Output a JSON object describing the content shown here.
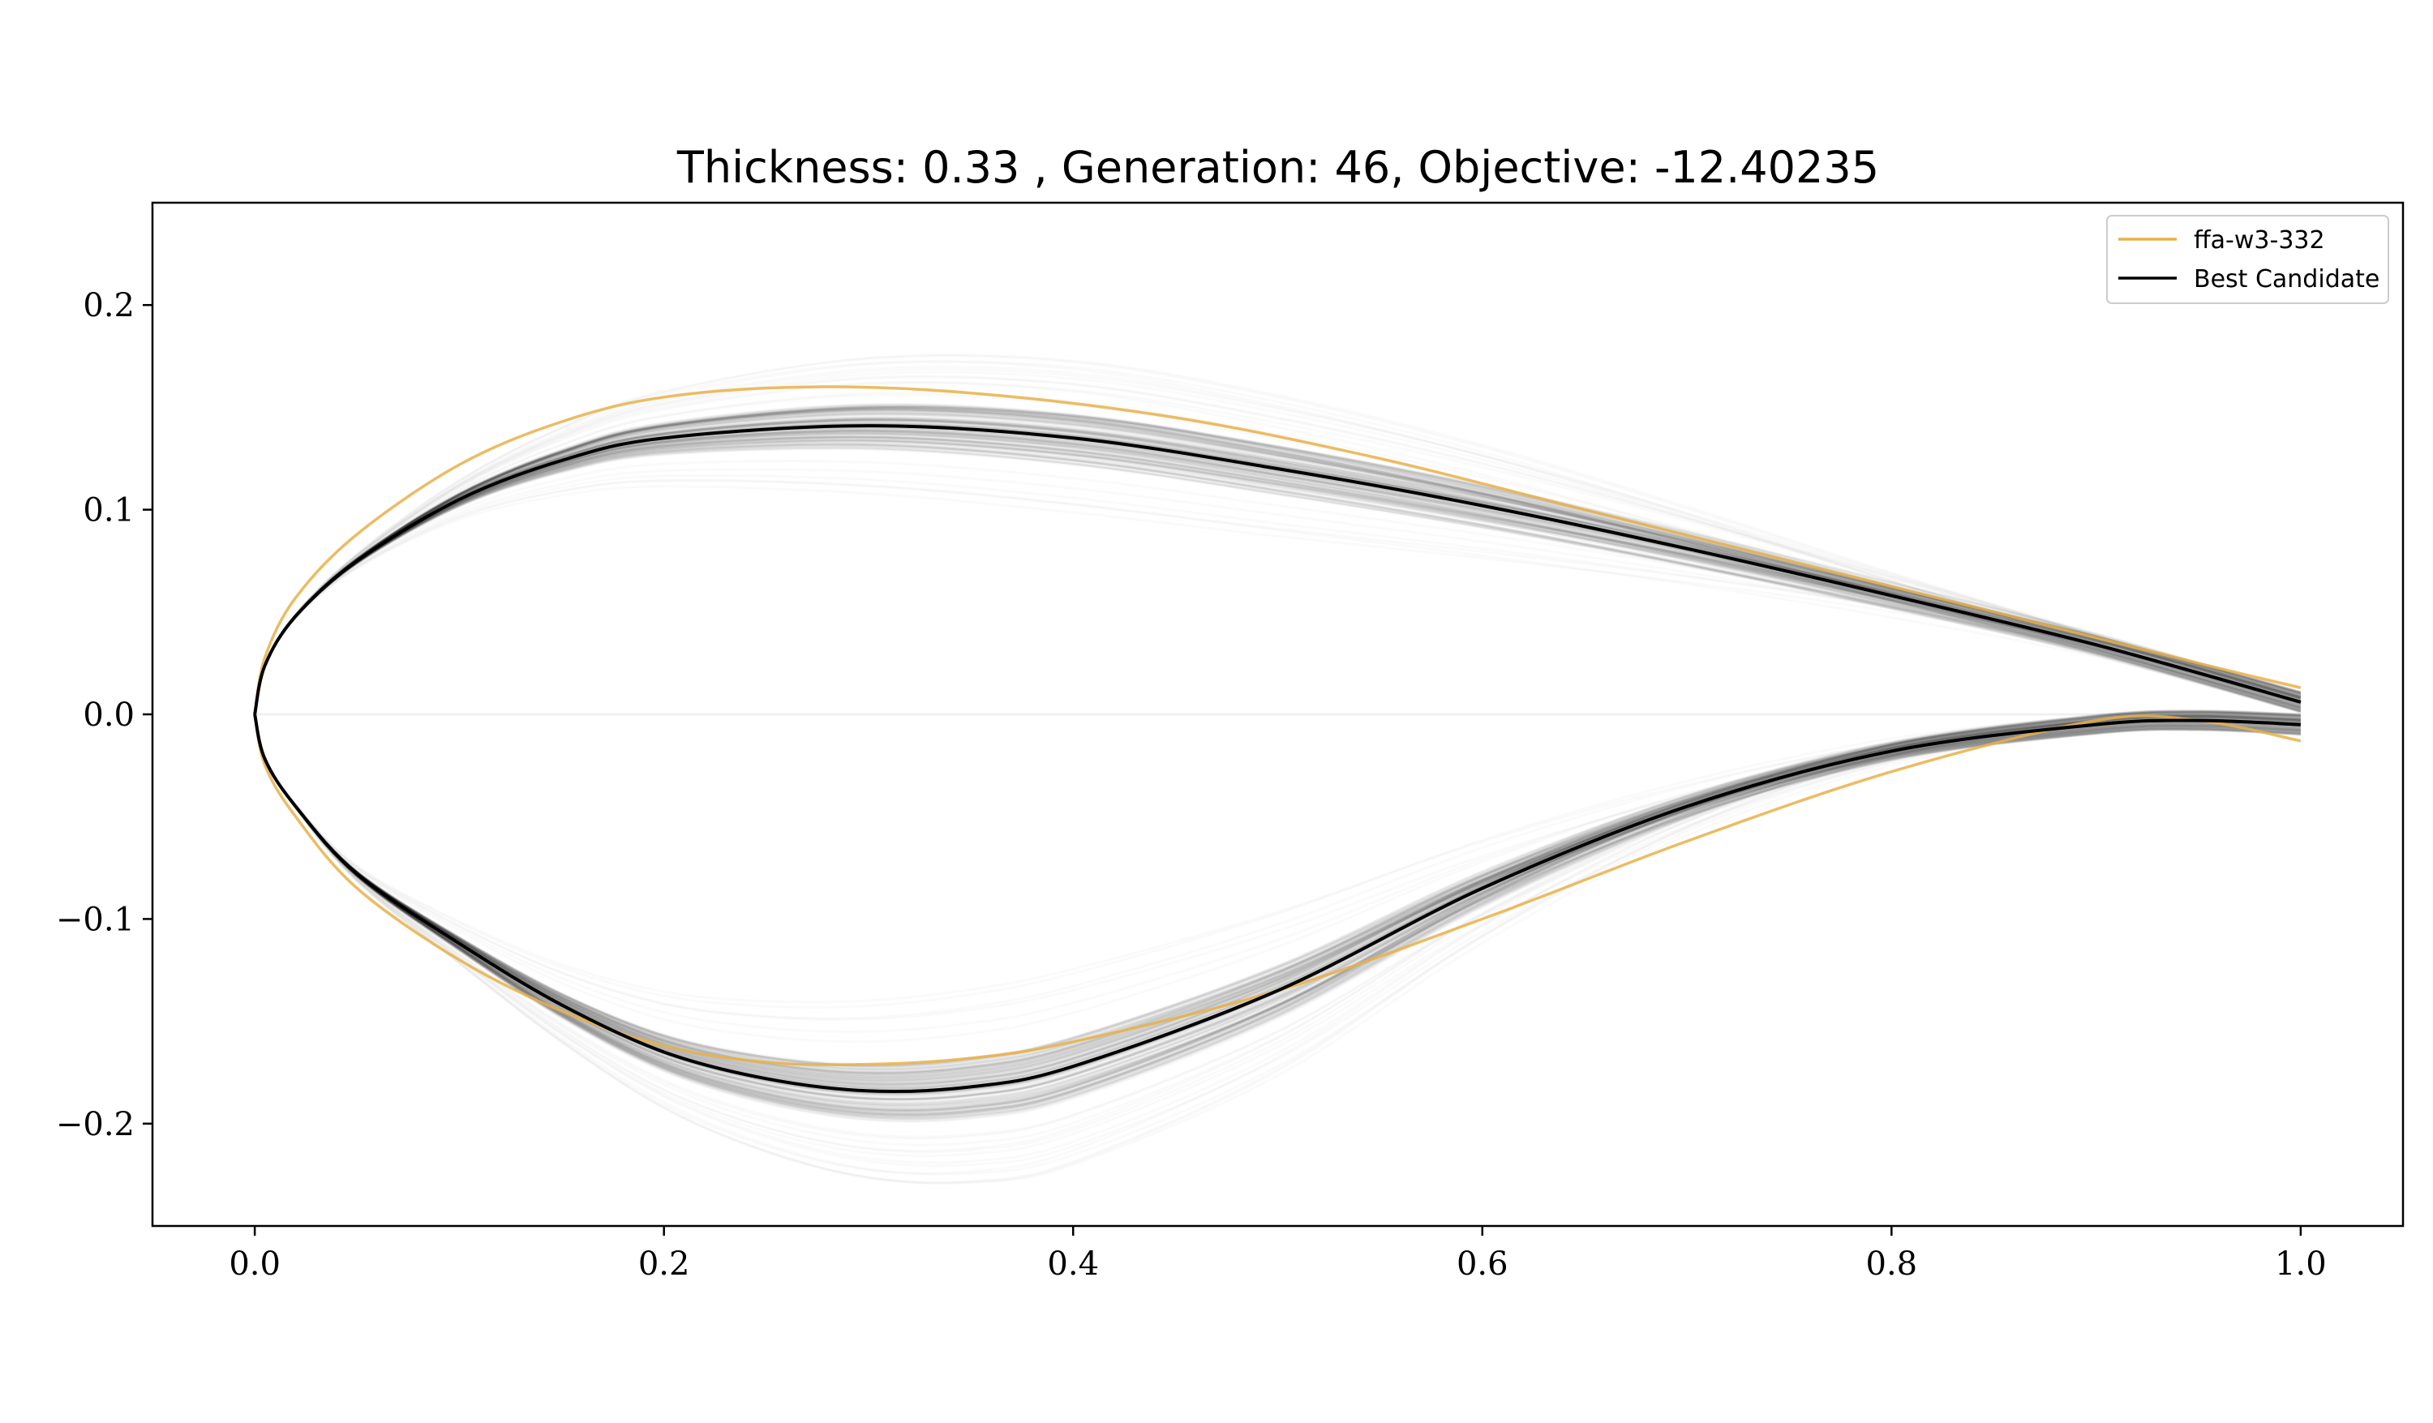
{
  "chart_data": {
    "type": "line",
    "title": "Thickness: 0.33 , Generation: 46, Objective: -12.40235",
    "xlabel": "",
    "ylabel": "",
    "xlim": [
      -0.05,
      1.05
    ],
    "ylim": [
      -0.25,
      0.25
    ],
    "x_ticks": [
      0.0,
      0.2,
      0.4,
      0.6,
      0.8,
      1.0
    ],
    "x_tick_labels": [
      "0.0",
      "0.2",
      "0.4",
      "0.6",
      "0.8",
      "1.0"
    ],
    "y_ticks": [
      -0.2,
      -0.1,
      0.0,
      0.1,
      0.2
    ],
    "y_tick_labels": [
      "−0.2",
      "−0.1",
      "0.0",
      "0.1",
      "0.2"
    ],
    "grid": false,
    "legend_position": "top-right",
    "legend": [
      {
        "label": "ffa-w3-332",
        "color": "#e8b048"
      },
      {
        "label": "Best Candidate",
        "color": "#000000"
      }
    ],
    "series": [
      {
        "name": "ffa-w3-332",
        "color": "#e8b048",
        "upper": [
          [
            0,
            0
          ],
          [
            0.005,
            0.028
          ],
          [
            0.02,
            0.057
          ],
          [
            0.05,
            0.088
          ],
          [
            0.1,
            0.122
          ],
          [
            0.15,
            0.143
          ],
          [
            0.2,
            0.155
          ],
          [
            0.27,
            0.16
          ],
          [
            0.35,
            0.157
          ],
          [
            0.45,
            0.145
          ],
          [
            0.55,
            0.125
          ],
          [
            0.65,
            0.1
          ],
          [
            0.75,
            0.075
          ],
          [
            0.85,
            0.05
          ],
          [
            0.95,
            0.025
          ],
          [
            1.0,
            0.013
          ]
        ],
        "lower": [
          [
            0,
            0
          ],
          [
            0.005,
            -0.025
          ],
          [
            0.02,
            -0.05
          ],
          [
            0.05,
            -0.085
          ],
          [
            0.1,
            -0.12
          ],
          [
            0.15,
            -0.145
          ],
          [
            0.2,
            -0.162
          ],
          [
            0.25,
            -0.17
          ],
          [
            0.3,
            -0.171
          ],
          [
            0.35,
            -0.168
          ],
          [
            0.4,
            -0.16
          ],
          [
            0.5,
            -0.135
          ],
          [
            0.6,
            -0.1
          ],
          [
            0.7,
            -0.062
          ],
          [
            0.8,
            -0.028
          ],
          [
            0.9,
            -0.003
          ],
          [
            0.95,
            -0.003
          ],
          [
            1.0,
            -0.013
          ]
        ]
      },
      {
        "name": "Best Candidate",
        "color": "#000000",
        "upper": [
          [
            0,
            0
          ],
          [
            0.005,
            0.024
          ],
          [
            0.02,
            0.048
          ],
          [
            0.05,
            0.075
          ],
          [
            0.1,
            0.105
          ],
          [
            0.15,
            0.124
          ],
          [
            0.2,
            0.135
          ],
          [
            0.3,
            0.141
          ],
          [
            0.4,
            0.135
          ],
          [
            0.5,
            0.12
          ],
          [
            0.6,
            0.102
          ],
          [
            0.7,
            0.081
          ],
          [
            0.8,
            0.058
          ],
          [
            0.9,
            0.034
          ],
          [
            1.0,
            0.006
          ]
        ],
        "lower": [
          [
            0,
            0
          ],
          [
            0.005,
            -0.022
          ],
          [
            0.02,
            -0.045
          ],
          [
            0.05,
            -0.078
          ],
          [
            0.1,
            -0.112
          ],
          [
            0.15,
            -0.142
          ],
          [
            0.2,
            -0.165
          ],
          [
            0.25,
            -0.178
          ],
          [
            0.3,
            -0.184
          ],
          [
            0.35,
            -0.182
          ],
          [
            0.4,
            -0.172
          ],
          [
            0.5,
            -0.135
          ],
          [
            0.6,
            -0.085
          ],
          [
            0.7,
            -0.045
          ],
          [
            0.8,
            -0.018
          ],
          [
            0.9,
            -0.005
          ],
          [
            0.95,
            -0.003
          ],
          [
            1.0,
            -0.005
          ]
        ]
      }
    ]
  }
}
